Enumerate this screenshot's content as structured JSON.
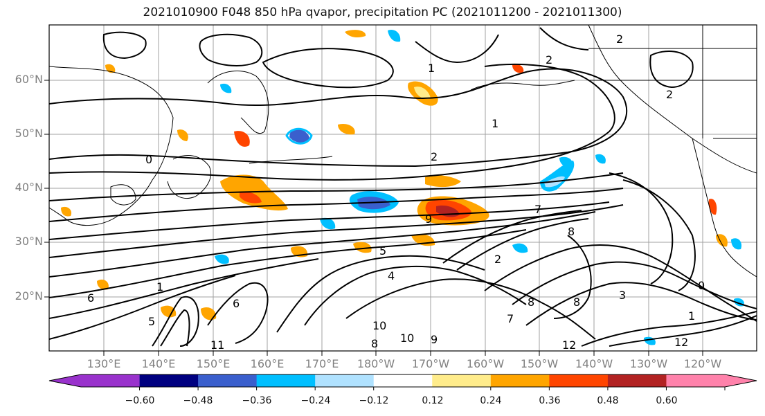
{
  "title": "2021010900 F048 850 hPa qvapor, precipitation PC (2021011200 - 2021011300)",
  "lat_labels": [
    "60°N",
    "50°N",
    "40°N",
    "30°N",
    "20°N"
  ],
  "lon_labels": [
    "130°E",
    "140°E",
    "150°E",
    "160°E",
    "170°E",
    "180°W",
    "170°W",
    "160°W",
    "150°W",
    "140°W",
    "130°W",
    "120°W"
  ],
  "colorbar": {
    "ticks": [
      "−0.60",
      "−0.48",
      "−0.36",
      "−0.24",
      "−0.12",
      "0.12",
      "0.24",
      "0.36",
      "0.48",
      "0.60"
    ],
    "colors": [
      "#9932cc",
      "#000080",
      "#3a5fcd",
      "#00bfff",
      "#b0e2ff",
      "#ffffff",
      "#ffec8b",
      "#ffa500",
      "#ff4500",
      "#b22222",
      "#ff82ab"
    ]
  },
  "contour_labels": [
    "2",
    "1",
    "2",
    "2",
    "1",
    "0",
    "2",
    "7",
    "9",
    "5",
    "2",
    "4",
    "8",
    "8",
    "6",
    "5",
    "3",
    "1",
    "10",
    "8",
    "9",
    "10",
    "12",
    "12",
    "1",
    "0",
    "11",
    "7",
    "8",
    "6"
  ]
}
